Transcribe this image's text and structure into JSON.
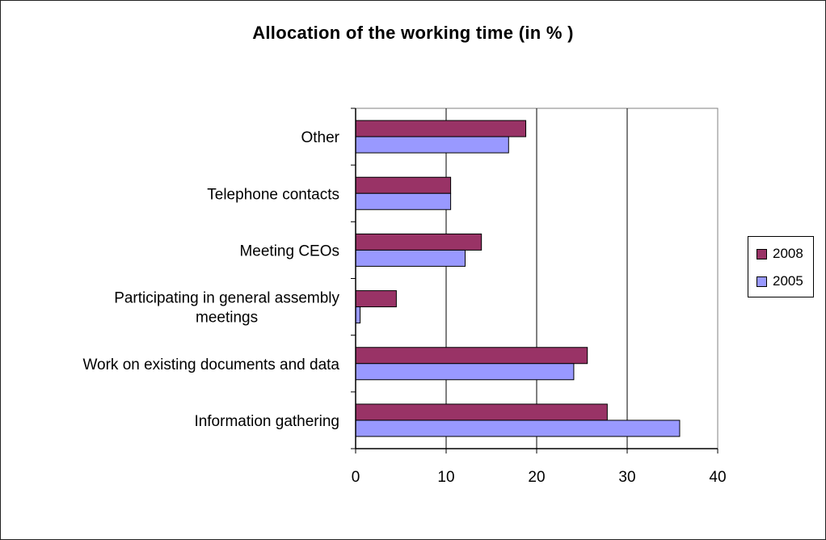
{
  "chart_data": {
    "type": "bar",
    "orientation": "horizontal",
    "title": "Allocation of the working time (in % )",
    "xlabel": "",
    "ylabel": "",
    "xlim": [
      0,
      40
    ],
    "x_ticks": [
      "0",
      "10",
      "20",
      "30",
      "40"
    ],
    "categories": [
      "Other",
      "Telephone contacts",
      "Meeting CEOs",
      "Participating in general assembly meetings",
      "Work on existing documents and data",
      "Information gathering"
    ],
    "category_label_lines": [
      [
        "Other"
      ],
      [
        "Telephone contacts"
      ],
      [
        "Meeting CEOs"
      ],
      [
        "Participating in general assembly",
        "meetings"
      ],
      [
        "Work on existing documents and data"
      ],
      [
        "Information gathering"
      ]
    ],
    "series": [
      {
        "name": "2008",
        "color": "#993366",
        "values": [
          18.8,
          10.5,
          13.9,
          4.5,
          25.6,
          27.8
        ]
      },
      {
        "name": "2005",
        "color": "#9999FF",
        "values": [
          16.9,
          10.5,
          12.1,
          0.5,
          24.1,
          35.8
        ]
      }
    ],
    "grid": "vertical major gridlines",
    "legend_position": "right"
  }
}
